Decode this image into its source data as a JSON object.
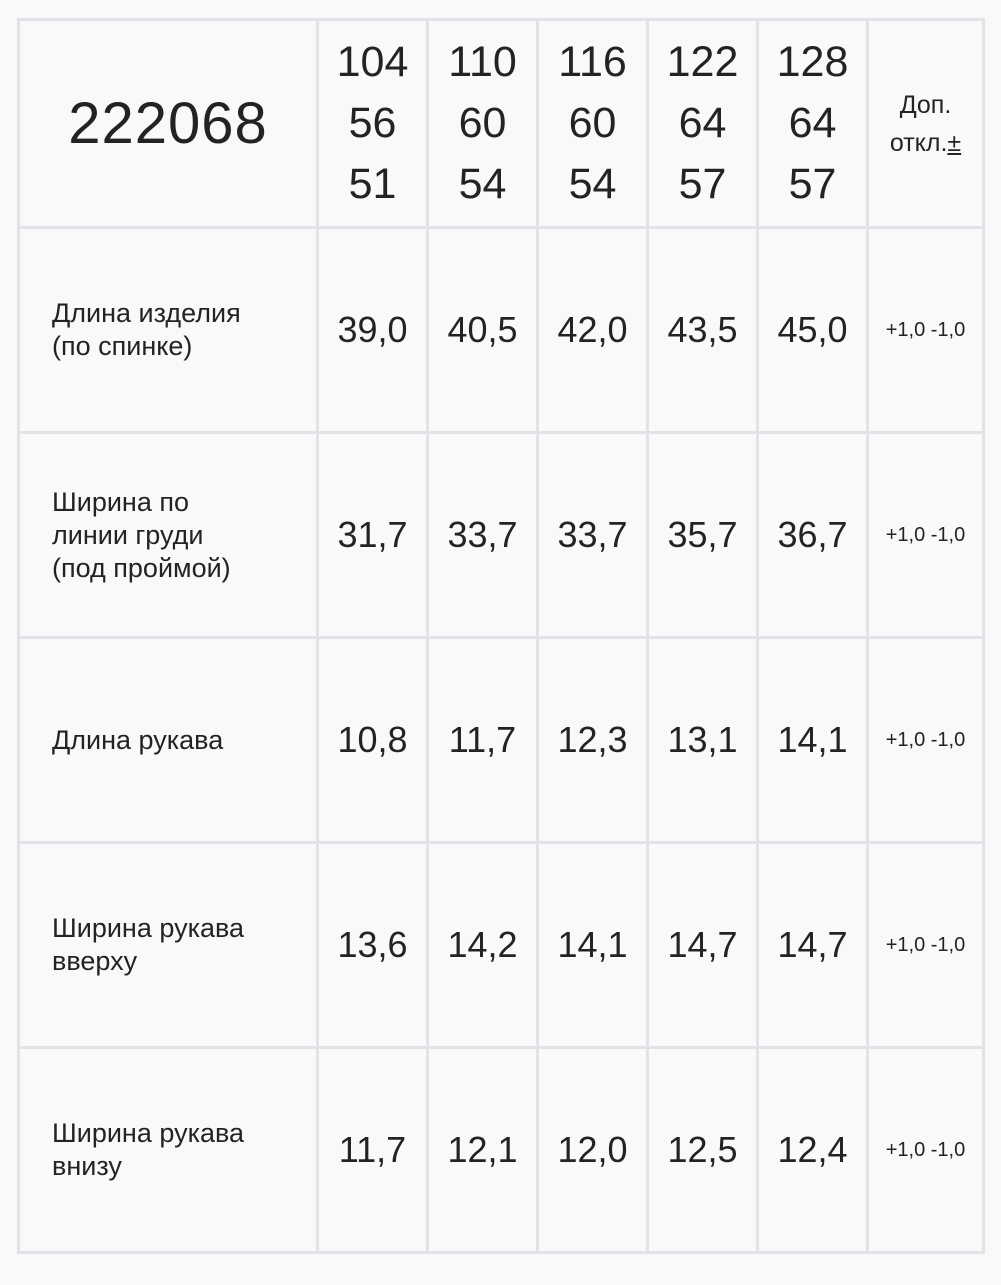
{
  "article": "222068",
  "sizes": [
    {
      "height": "104",
      "chest": "56",
      "waist": "51"
    },
    {
      "height": "110",
      "chest": "60",
      "waist": "54"
    },
    {
      "height": "116",
      "chest": "60",
      "waist": "54"
    },
    {
      "height": "122",
      "chest": "64",
      "waist": "57"
    },
    {
      "height": "128",
      "chest": "64",
      "waist": "57"
    }
  ],
  "tolerance_header": {
    "line1": "Доп.",
    "line2": "откл.",
    "sign": "±"
  },
  "rows": [
    {
      "label": [
        "Длина изделия",
        "(по спинке)"
      ],
      "values": [
        "39,0",
        "40,5",
        "42,0",
        "43,5",
        "45,0"
      ],
      "tolerance": "+1,0 -1,0"
    },
    {
      "label": [
        "Ширина по",
        "линии груди",
        "(под проймой)"
      ],
      "values": [
        "31,7",
        "33,7",
        "33,7",
        "35,7",
        "36,7"
      ],
      "tolerance": "+1,0 -1,0"
    },
    {
      "label": [
        "Длина рукава"
      ],
      "values": [
        "10,8",
        "11,7",
        "12,3",
        "13,1",
        "14,1"
      ],
      "tolerance": "+1,0 -1,0"
    },
    {
      "label": [
        "Ширина рукава",
        "вверху"
      ],
      "values": [
        "13,6",
        "14,2",
        "14,1",
        "14,7",
        "14,7"
      ],
      "tolerance": "+1,0 -1,0"
    },
    {
      "label": [
        "Ширина рукава",
        "внизу"
      ],
      "values": [
        "11,7",
        "12,1",
        "12,0",
        "12,5",
        "12,4"
      ],
      "tolerance": "+1,0 -1,0"
    }
  ]
}
